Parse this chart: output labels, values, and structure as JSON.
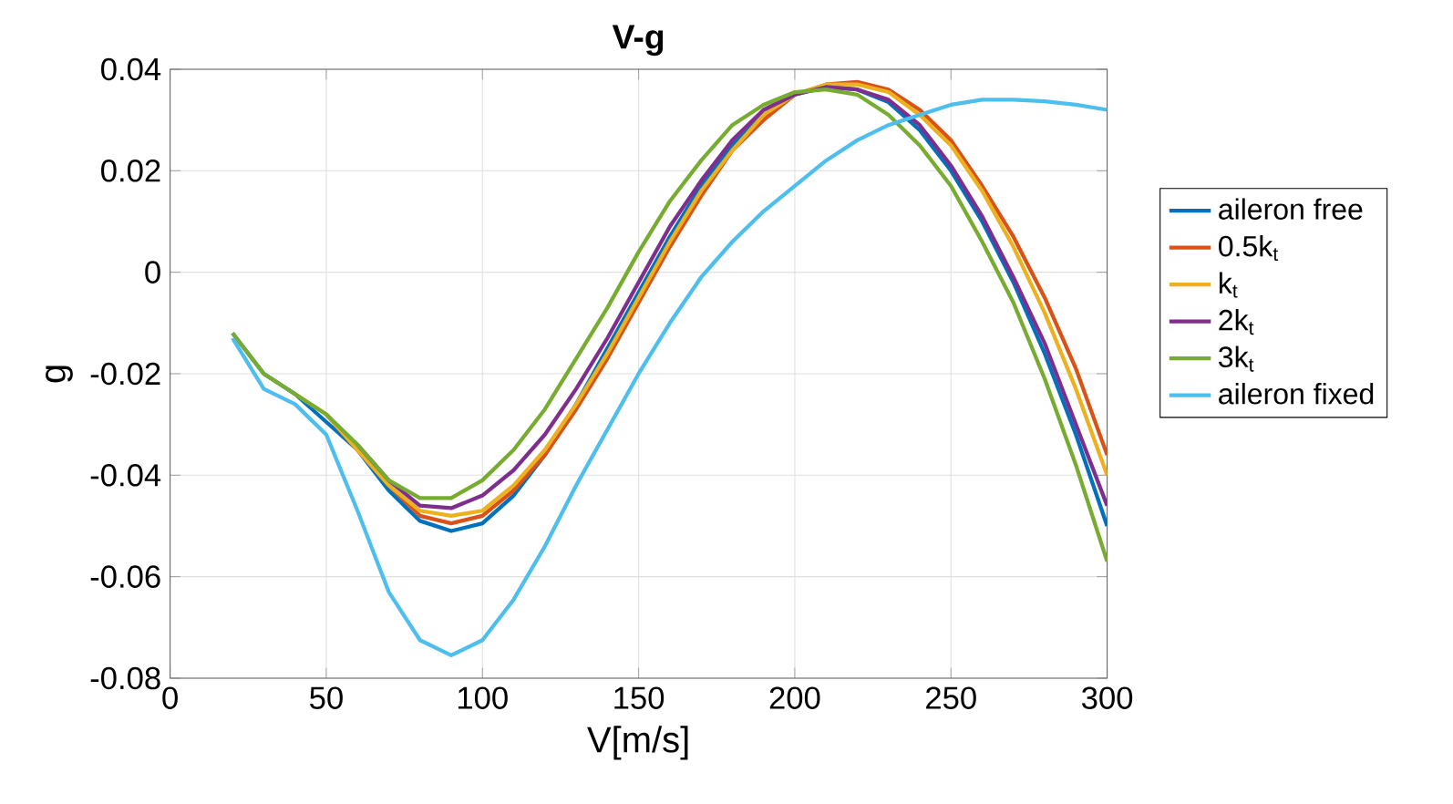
{
  "chart_data": {
    "type": "line",
    "title": "V-g",
    "xlabel": "V[m/s]",
    "ylabel": "g",
    "x": [
      20,
      30,
      40,
      50,
      60,
      70,
      80,
      90,
      100,
      110,
      120,
      130,
      140,
      150,
      160,
      170,
      180,
      190,
      200,
      210,
      220,
      230,
      240,
      250,
      260,
      270,
      280,
      290,
      300
    ],
    "series": [
      {
        "name": "aileron free",
        "color": "#0072bd",
        "values": [
          -0.012,
          -0.02,
          -0.024,
          null,
          -0.035,
          -0.043,
          -0.049,
          -0.051,
          -0.0495,
          -0.044,
          -0.036,
          -0.026,
          -0.015,
          -0.004,
          0.007,
          0.017,
          0.025,
          0.031,
          0.035,
          0.0365,
          0.036,
          0.0335,
          0.028,
          0.02,
          0.01,
          -0.002,
          -0.016,
          -0.032,
          -0.05
        ]
      },
      {
        "name": "0.5k$_{t}$",
        "color": "#d95319",
        "values": [
          null,
          null,
          null,
          -0.028,
          -0.035,
          -0.042,
          -0.048,
          -0.0495,
          -0.048,
          -0.043,
          -0.036,
          -0.027,
          -0.017,
          -0.006,
          0.005,
          0.015,
          0.024,
          0.03,
          0.035,
          0.037,
          0.0375,
          0.036,
          0.032,
          0.026,
          0.017,
          0.007,
          -0.005,
          -0.019,
          -0.036
        ]
      },
      {
        "name": "k$_{t}$",
        "color": "#edb120",
        "values": [
          null,
          null,
          -0.024,
          -0.028,
          -0.035,
          -0.042,
          -0.047,
          -0.048,
          -0.047,
          -0.042,
          -0.035,
          -0.026,
          -0.016,
          -0.005,
          0.006,
          0.016,
          0.024,
          0.031,
          0.035,
          0.037,
          0.037,
          0.0355,
          0.031,
          0.025,
          0.016,
          0.005,
          -0.008,
          -0.023,
          -0.04
        ]
      },
      {
        "name": "2k$_{t}$",
        "color": "#7e2f8e",
        "values": [
          null,
          null,
          null,
          null,
          -0.034,
          -0.041,
          -0.046,
          -0.0465,
          -0.044,
          -0.039,
          -0.032,
          -0.023,
          -0.013,
          -0.002,
          0.009,
          0.018,
          0.026,
          0.032,
          0.035,
          0.0365,
          0.036,
          0.034,
          0.029,
          0.021,
          0.011,
          -0.001,
          -0.014,
          -0.03,
          -0.046
        ]
      },
      {
        "name": "3k$_{t}$",
        "color": "#77ac30",
        "values": [
          -0.012,
          -0.02,
          -0.024,
          -0.028,
          -0.034,
          -0.041,
          -0.0445,
          -0.0445,
          -0.041,
          -0.035,
          -0.027,
          -0.017,
          -0.007,
          0.004,
          0.014,
          0.022,
          0.029,
          0.033,
          0.0355,
          0.036,
          0.035,
          0.031,
          0.025,
          0.017,
          0.006,
          -0.006,
          -0.021,
          -0.038,
          -0.057
        ]
      },
      {
        "name": "aileron fixed",
        "color": "#4dbeee",
        "values": [
          -0.013,
          -0.023,
          -0.026,
          -0.032,
          -0.047,
          -0.063,
          -0.0725,
          -0.0755,
          -0.0725,
          -0.0645,
          -0.054,
          -0.042,
          -0.031,
          -0.02,
          -0.01,
          -0.001,
          0.006,
          0.012,
          0.017,
          0.022,
          0.026,
          0.029,
          0.031,
          0.033,
          0.034,
          0.034,
          0.0337,
          0.033,
          0.032
        ]
      }
    ],
    "xlim": [
      0,
      300
    ],
    "ylim": [
      -0.08,
      0.04
    ],
    "xticks": [
      0,
      50,
      100,
      150,
      200,
      250,
      300
    ],
    "yticks": [
      -0.08,
      -0.06,
      -0.04,
      -0.02,
      0,
      0.02,
      0.04
    ],
    "grid": true,
    "legend": "right",
    "marker": "none",
    "line_style": "solid"
  }
}
